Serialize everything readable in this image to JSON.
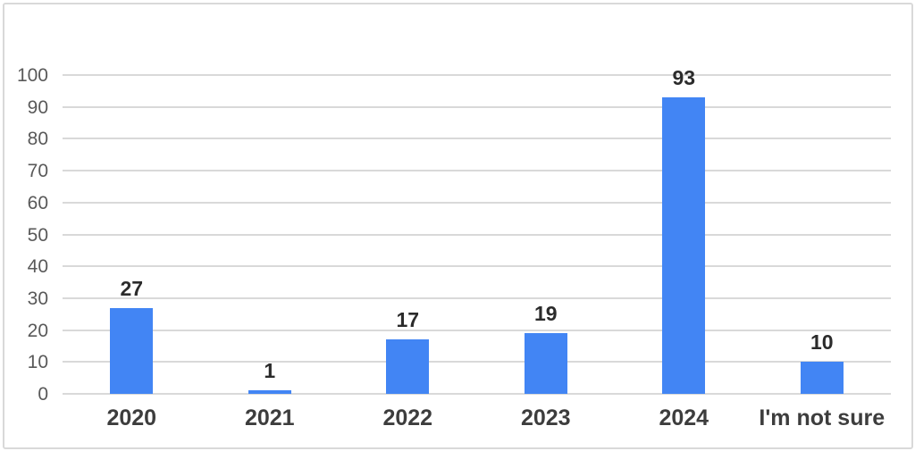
{
  "chart_data": {
    "type": "bar",
    "title": "",
    "xlabel": "",
    "ylabel": "",
    "categories": [
      "2020",
      "2021",
      "2022",
      "2023",
      "2024",
      "I'm not sure"
    ],
    "values": [
      27,
      1,
      17,
      19,
      93,
      10
    ],
    "data_labels": [
      "27",
      "1",
      "17",
      "19",
      "93",
      "10"
    ],
    "ylim": [
      0,
      100
    ],
    "ytick_step": 10,
    "ytick_labels": [
      "0",
      "10",
      "20",
      "30",
      "40",
      "50",
      "60",
      "70",
      "80",
      "90",
      "100"
    ],
    "grid": "horizontal",
    "legend_position": "none",
    "colors": {
      "bar_fill": "#4285F4",
      "gridline": "#d9d9d9",
      "y_tick_text": "#595959",
      "data_label_text": "#2b2b2b",
      "category_text": "#3d3d3d",
      "frame_border": "#d9d9d9",
      "background": "#ffffff"
    }
  }
}
